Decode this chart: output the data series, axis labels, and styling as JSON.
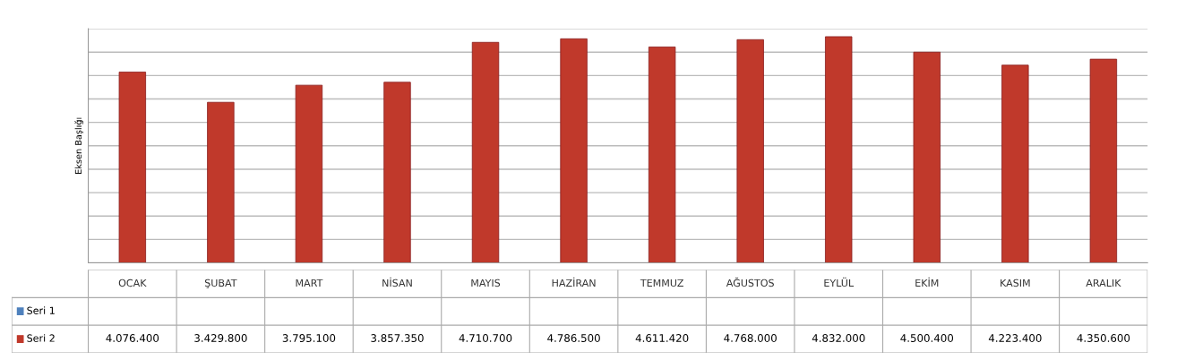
{
  "chart_data": {
    "type": "bar",
    "ylabel": "Eksen Başlığı",
    "categories": [
      "OCAK",
      "ŞUBAT",
      "MART",
      "NİSAN",
      "MAYIS",
      "HAZİRAN",
      "TEMMUZ",
      "AĞUSTOS",
      "EYLÜL",
      "EKİM",
      "KASIM",
      "ARALIK"
    ],
    "series": [
      {
        "name": "Seri 1",
        "color": "#4f81bd",
        "values": [
          null,
          null,
          null,
          null,
          null,
          null,
          null,
          null,
          null,
          null,
          null,
          null
        ],
        "value_labels": [
          null,
          null,
          null,
          null,
          null,
          null,
          null,
          null,
          null,
          null,
          null,
          null
        ]
      },
      {
        "name": "Seri 2",
        "color": "#c0392b",
        "values": [
          4076400,
          3429800,
          3795100,
          3857350,
          4710700,
          4786500,
          4611420,
          4768000,
          4832000,
          4500400,
          4223400,
          4350600
        ],
        "value_labels": [
          "4.076.400",
          "3.429.800",
          "3.795.100",
          "3.857.350",
          "4.710.700",
          "4.786.500",
          "4.611.420",
          "4.768.000",
          "4.832.000",
          "4.500.400",
          "4.223.400",
          "4.350.600"
        ]
      }
    ],
    "ylim": [
      0,
      5000000
    ],
    "yticks": [
      {
        "value": 0,
        "label": null
      },
      {
        "value": 500000,
        "label": null
      },
      {
        "value": 1000000,
        "label": null
      },
      {
        "value": 1500000,
        "label": null
      },
      {
        "value": 2000000,
        "label": null
      },
      {
        "value": 2500000,
        "label": null
      },
      {
        "value": 3000000,
        "label": null
      },
      {
        "value": 3500000,
        "label": null
      },
      {
        "value": 4000000,
        "label": null
      },
      {
        "value": 4500000,
        "label": null
      },
      {
        "value": 5000000,
        "label": null
      }
    ],
    "grid": "y",
    "tick_labels": false,
    "legend": "bottom left"
  }
}
